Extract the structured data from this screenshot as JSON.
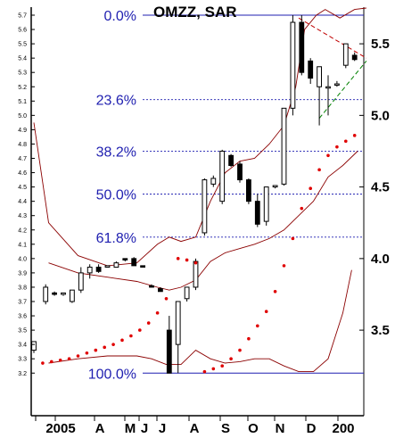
{
  "chart_data": {
    "type": "candlestick",
    "title": "OMZZ, SAR",
    "y_left_ticks": [
      "5.7",
      "5.6",
      "5.5",
      "5.4",
      "5.3",
      "5.2",
      "5.1",
      "5.0",
      "4.9",
      "4.8",
      "4.7",
      "4.6",
      "4.5",
      "4.4",
      "4.3",
      "4.2",
      "4.1",
      "4.0",
      "3.9",
      "3.8",
      "3.7",
      "3.6",
      "3.5",
      "3.4",
      "3.3",
      "3.2"
    ],
    "y_right_ticks": [
      "5.5",
      "5.0",
      "4.5",
      "4.0",
      "3.5"
    ],
    "x_ticks": [
      "2005",
      "A",
      "M",
      "J",
      "J",
      "A",
      "S",
      "O",
      "N",
      "D",
      "200"
    ],
    "ylim": [
      3.18,
      5.76
    ],
    "fib_levels": [
      {
        "label": "0.0%",
        "value": 5.7
      },
      {
        "label": "23.6%",
        "value": 5.11
      },
      {
        "label": "38.2%",
        "value": 4.75
      },
      {
        "label": "50.0%",
        "value": 4.45
      },
      {
        "label": "61.8%",
        "value": 4.15
      },
      {
        "label": "100.0%",
        "value": 3.2
      }
    ],
    "candles": [
      {
        "x": 0,
        "o": 3.36,
        "h": 3.42,
        "l": 3.34,
        "c": 3.42
      },
      {
        "x": 4,
        "o": 3.7,
        "h": 3.82,
        "l": 3.68,
        "c": 3.8
      },
      {
        "x": 7,
        "o": 3.76,
        "h": 3.77,
        "l": 3.74,
        "c": 3.75
      },
      {
        "x": 10,
        "o": 3.75,
        "h": 3.76,
        "l": 3.74,
        "c": 3.76
      },
      {
        "x": 13,
        "o": 3.7,
        "h": 3.78,
        "l": 3.69,
        "c": 3.78
      },
      {
        "x": 16,
        "o": 3.78,
        "h": 3.94,
        "l": 3.76,
        "c": 3.9
      },
      {
        "x": 19,
        "o": 3.9,
        "h": 3.96,
        "l": 3.86,
        "c": 3.94
      },
      {
        "x": 22,
        "o": 3.94,
        "h": 3.96,
        "l": 3.9,
        "c": 3.91
      },
      {
        "x": 25,
        "o": 3.94,
        "h": 3.95,
        "l": 3.94,
        "c": 3.95
      },
      {
        "x": 28,
        "o": 3.94,
        "h": 3.98,
        "l": 3.94,
        "c": 3.97
      },
      {
        "x": 31,
        "o": 4.0,
        "h": 4.0,
        "l": 3.98,
        "c": 3.99
      },
      {
        "x": 34,
        "o": 4.0,
        "h": 4.01,
        "l": 3.95,
        "c": 3.95
      },
      {
        "x": 37,
        "o": 3.95,
        "h": 3.95,
        "l": 3.94,
        "c": 3.94
      },
      {
        "x": 40,
        "o": 3.81,
        "h": 3.82,
        "l": 3.8,
        "c": 3.8
      },
      {
        "x": 43,
        "o": 3.79,
        "h": 3.8,
        "l": 3.77,
        "c": 3.77
      },
      {
        "x": 46,
        "o": 3.5,
        "h": 3.6,
        "l": 3.2,
        "c": 3.2
      },
      {
        "x": 49,
        "o": 3.4,
        "h": 3.7,
        "l": 3.2,
        "c": 3.7
      },
      {
        "x": 52,
        "o": 3.72,
        "h": 3.8,
        "l": 3.7,
        "c": 3.8
      },
      {
        "x": 55,
        "o": 3.8,
        "h": 4.0,
        "l": 3.78,
        "c": 3.98
      },
      {
        "x": 58,
        "o": 4.18,
        "h": 4.56,
        "l": 4.16,
        "c": 4.55
      },
      {
        "x": 61,
        "o": 4.52,
        "h": 4.58,
        "l": 4.5,
        "c": 4.56
      },
      {
        "x": 64,
        "o": 4.4,
        "h": 4.76,
        "l": 4.38,
        "c": 4.75
      },
      {
        "x": 67,
        "o": 4.72,
        "h": 4.73,
        "l": 4.64,
        "c": 4.65
      },
      {
        "x": 70,
        "o": 4.66,
        "h": 4.68,
        "l": 4.53,
        "c": 4.55
      },
      {
        "x": 73,
        "o": 4.55,
        "h": 4.56,
        "l": 4.38,
        "c": 4.4
      },
      {
        "x": 76,
        "o": 4.4,
        "h": 4.45,
        "l": 4.22,
        "c": 4.24
      },
      {
        "x": 79,
        "o": 4.26,
        "h": 4.5,
        "l": 4.23,
        "c": 4.5
      },
      {
        "x": 82,
        "o": 4.5,
        "h": 4.51,
        "l": 4.49,
        "c": 4.51
      },
      {
        "x": 85,
        "o": 4.52,
        "h": 5.05,
        "l": 4.51,
        "c": 5.05
      },
      {
        "x": 88,
        "o": 5.05,
        "h": 5.7,
        "l": 5.0,
        "c": 5.65
      },
      {
        "x": 91,
        "o": 5.65,
        "h": 5.7,
        "l": 5.28,
        "c": 5.3
      },
      {
        "x": 94,
        "o": 5.38,
        "h": 5.4,
        "l": 5.22,
        "c": 5.26
      },
      {
        "x": 97,
        "o": 5.2,
        "h": 5.34,
        "l": 4.93,
        "c": 5.34
      },
      {
        "x": 100,
        "o": 5.2,
        "h": 5.28,
        "l": 5.0,
        "c": 5.2
      },
      {
        "x": 103,
        "o": 5.22,
        "h": 5.24,
        "l": 5.2,
        "c": 5.22
      },
      {
        "x": 106,
        "o": 5.35,
        "h": 5.5,
        "l": 5.33,
        "c": 5.5
      },
      {
        "x": 109,
        "o": 5.42,
        "h": 5.44,
        "l": 5.38,
        "c": 5.39
      }
    ],
    "bollinger_upper": [
      [
        0,
        4.95
      ],
      [
        5,
        4.25
      ],
      [
        15,
        4.02
      ],
      [
        25,
        3.95
      ],
      [
        35,
        3.97
      ],
      [
        42,
        4.1
      ],
      [
        46,
        4.15
      ],
      [
        50,
        4.12
      ],
      [
        55,
        4.15
      ],
      [
        60,
        4.4
      ],
      [
        65,
        4.6
      ],
      [
        70,
        4.68
      ],
      [
        75,
        4.7
      ],
      [
        80,
        4.8
      ],
      [
        85,
        4.93
      ],
      [
        89,
        5.2
      ],
      [
        92,
        5.6
      ],
      [
        96,
        5.7
      ],
      [
        99,
        5.74
      ],
      [
        104,
        5.68
      ],
      [
        109,
        5.74
      ],
      [
        113,
        5.75
      ]
    ],
    "bollinger_middle": [
      [
        5,
        3.97
      ],
      [
        15,
        3.9
      ],
      [
        25,
        3.87
      ],
      [
        35,
        3.84
      ],
      [
        42,
        3.8
      ],
      [
        46,
        3.78
      ],
      [
        50,
        3.8
      ],
      [
        55,
        3.85
      ],
      [
        60,
        3.98
      ],
      [
        65,
        4.04
      ],
      [
        70,
        4.07
      ],
      [
        75,
        4.1
      ],
      [
        80,
        4.14
      ],
      [
        85,
        4.2
      ],
      [
        90,
        4.3
      ],
      [
        95,
        4.4
      ],
      [
        100,
        4.57
      ],
      [
        105,
        4.65
      ],
      [
        110,
        4.75
      ]
    ],
    "bollinger_lower": [
      [
        5,
        3.27
      ],
      [
        15,
        3.3
      ],
      [
        25,
        3.32
      ],
      [
        35,
        3.32
      ],
      [
        40,
        3.3
      ],
      [
        45,
        3.26
      ],
      [
        50,
        3.26
      ],
      [
        55,
        3.36
      ],
      [
        60,
        3.3
      ],
      [
        65,
        3.27
      ],
      [
        70,
        3.28
      ],
      [
        75,
        3.3
      ],
      [
        80,
        3.3
      ],
      [
        85,
        3.25
      ],
      [
        90,
        3.21
      ],
      [
        95,
        3.21
      ],
      [
        100,
        3.3
      ],
      [
        105,
        3.62
      ],
      [
        108,
        3.92
      ]
    ],
    "sar_points": [
      [
        3,
        3.27
      ],
      [
        6,
        3.28
      ],
      [
        9,
        3.29
      ],
      [
        12,
        3.3
      ],
      [
        15,
        3.32
      ],
      [
        18,
        3.34
      ],
      [
        21,
        3.36
      ],
      [
        24,
        3.38
      ],
      [
        27,
        3.4
      ],
      [
        30,
        3.43
      ],
      [
        33,
        3.46
      ],
      [
        36,
        3.5
      ],
      [
        39,
        3.55
      ],
      [
        42,
        3.62
      ],
      [
        45,
        3.72
      ],
      [
        49,
        4.0
      ],
      [
        52,
        3.99
      ],
      [
        55,
        3.97
      ],
      [
        58,
        3.21
      ],
      [
        61,
        3.23
      ],
      [
        64,
        3.25
      ],
      [
        67,
        3.3
      ],
      [
        70,
        3.36
      ],
      [
        73,
        3.44
      ],
      [
        76,
        3.53
      ],
      [
        79,
        3.63
      ],
      [
        82,
        3.77
      ],
      [
        85,
        3.95
      ],
      [
        88,
        4.14
      ],
      [
        91,
        4.35
      ],
      [
        94,
        4.49
      ],
      [
        97,
        4.62
      ],
      [
        100,
        4.72
      ],
      [
        103,
        4.78
      ],
      [
        106,
        4.82
      ],
      [
        109,
        4.86
      ]
    ],
    "trend_lines": [
      {
        "color": "#c00000",
        "style": "dashed",
        "from": [
          90,
          5.68
        ],
        "to": [
          113,
          5.4
        ]
      },
      {
        "color": "#008000",
        "style": "dashed",
        "from": [
          97,
          4.98
        ],
        "to": [
          113,
          5.38
        ]
      }
    ],
    "xlabel": "",
    "ylabel": "",
    "grid": false,
    "legend": "none"
  }
}
